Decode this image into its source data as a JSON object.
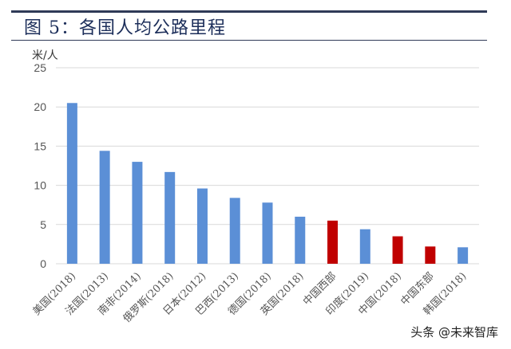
{
  "page": {
    "title": "图 5：各国人均公路里程",
    "watermark": "头条 @未来智库"
  },
  "chart_data": {
    "type": "bar",
    "ylabel": "米/人",
    "ylim": [
      0,
      25
    ],
    "yticks": [
      0,
      5,
      10,
      15,
      20,
      25
    ],
    "grid": true,
    "categories": [
      "美国(2018)",
      "法国(2013)",
      "南非(2014)",
      "俄罗斯(2018)",
      "日本(2012)",
      "巴西(2013)",
      "德国(2018)",
      "英国(2018)",
      "中国西部",
      "印度(2019)",
      "中国(2018)",
      "中国东部",
      "韩国(2018)"
    ],
    "values": [
      20.5,
      14.4,
      13.0,
      11.7,
      9.6,
      8.4,
      7.8,
      6.0,
      5.5,
      4.4,
      3.5,
      2.2,
      2.1
    ],
    "bar_colors": [
      "#5b8fd6",
      "#5b8fd6",
      "#5b8fd6",
      "#5b8fd6",
      "#5b8fd6",
      "#5b8fd6",
      "#5b8fd6",
      "#5b8fd6",
      "#c00000",
      "#5b8fd6",
      "#c00000",
      "#c00000",
      "#5b8fd6"
    ],
    "colors": {
      "default": "#5b8fd6",
      "highlight": "#c00000",
      "grid": "#d9d9d9",
      "axis_text": "#555555"
    }
  }
}
